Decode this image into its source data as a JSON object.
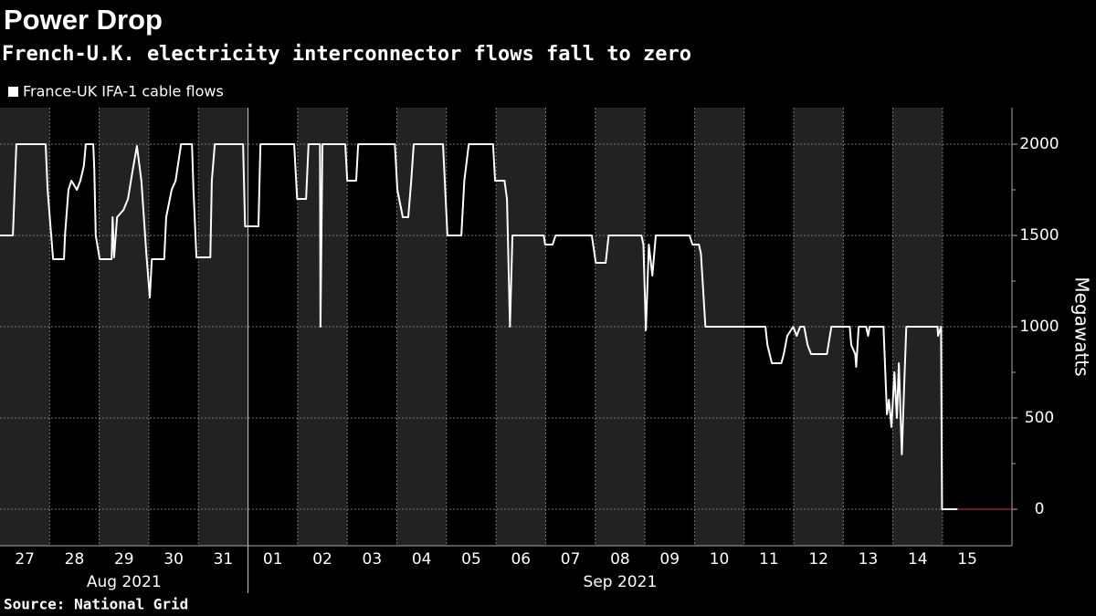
{
  "chart_data": {
    "type": "line",
    "title": "Power Drop",
    "subtitle": "French-U.K. electricity interconnector flows fall to zero",
    "source": "Source: National Grid",
    "y_axis_label": "Megawatts",
    "series": [
      {
        "name": "France-UK IFA-1 cable flows",
        "color": "#ffffff",
        "x": [
          0,
          0.26,
          0.33,
          0.92,
          0.96,
          1.07,
          1.29,
          1.31,
          1.38,
          1.44,
          1.55,
          1.62,
          1.69,
          1.73,
          1.88,
          1.9,
          1.93,
          2.01,
          2.25,
          2.27,
          2.3,
          2.36,
          2.49,
          2.58,
          2.67,
          2.76,
          2.85,
          2.95,
          3.02,
          3.06,
          3.31,
          3.35,
          3.46,
          3.54,
          3.65,
          3.87,
          3.9,
          3.96,
          4.24,
          4.27,
          4.33,
          4.9,
          4.94,
          5.21,
          5.25,
          5.93,
          5.99,
          6.17,
          6.22,
          6.45,
          6.46,
          6.5,
          6.96,
          7.0,
          7.18,
          7.22,
          7.96,
          8.01,
          8.12,
          8.23,
          8.29,
          8.34,
          8.93,
          9.02,
          9.3,
          9.36,
          9.45,
          9.94,
          9.98,
          10.17,
          10.22,
          10.28,
          10.33,
          10.96,
          10.99,
          11.14,
          11.2,
          11.93,
          12.01,
          12.21,
          12.27,
          12.93,
          12.97,
          13.02,
          13.08,
          13.15,
          13.22,
          13.9,
          13.96,
          14.09,
          14.13,
          14.22,
          15.43,
          15.47,
          15.56,
          15.75,
          15.8,
          15.87,
          15.99,
          16.06,
          16.13,
          16.21,
          16.28,
          16.35,
          16.67,
          16.76,
          17.13,
          17.16,
          17.24,
          17.26,
          17.31,
          17.46,
          17.5,
          17.53,
          17.81,
          17.88,
          17.92,
          17.97,
          18.03,
          18.08,
          18.12,
          18.18,
          18.23,
          18.27,
          18.9,
          18.91,
          18.97,
          18.99,
          19.3
        ],
        "values": [
          1500,
          1500,
          2000,
          2000,
          1750,
          1370,
          1370,
          1500,
          1750,
          1800,
          1750,
          1800,
          1880,
          2000,
          2000,
          1870,
          1500,
          1370,
          1370,
          1600,
          1380,
          1600,
          1640,
          1700,
          1850,
          1990,
          1800,
          1400,
          1160,
          1370,
          1370,
          1600,
          1750,
          1800,
          2000,
          2000,
          1750,
          1380,
          1380,
          1800,
          2000,
          2000,
          1550,
          1550,
          2000,
          2000,
          1700,
          1700,
          2000,
          2000,
          1000,
          2000,
          2000,
          1800,
          1800,
          2000,
          2000,
          1750,
          1600,
          1600,
          1800,
          2000,
          2000,
          1500,
          1500,
          1800,
          2000,
          2000,
          1800,
          1800,
          1700,
          1000,
          1500,
          1500,
          1450,
          1450,
          1500,
          1500,
          1350,
          1350,
          1500,
          1500,
          1450,
          980,
          1450,
          1280,
          1500,
          1500,
          1450,
          1450,
          1400,
          1000,
          1000,
          900,
          800,
          800,
          850,
          950,
          1000,
          950,
          1000,
          1000,
          900,
          850,
          850,
          1000,
          1000,
          900,
          850,
          780,
          1000,
          1000,
          950,
          1000,
          1000,
          520,
          600,
          450,
          750,
          500,
          800,
          300,
          700,
          1000,
          1000,
          950,
          1000,
          0,
          0
        ]
      }
    ],
    "xlim": [
      0,
      20.4
    ],
    "xticks": [
      {
        "value": 0,
        "label": "27"
      },
      {
        "value": 1,
        "label": "28"
      },
      {
        "value": 2,
        "label": "29"
      },
      {
        "value": 3,
        "label": "30"
      },
      {
        "value": 4,
        "label": "31"
      },
      {
        "value": 5,
        "label": "01"
      },
      {
        "value": 6,
        "label": "02"
      },
      {
        "value": 7,
        "label": "03"
      },
      {
        "value": 8,
        "label": "04"
      },
      {
        "value": 9,
        "label": "05"
      },
      {
        "value": 10,
        "label": "06"
      },
      {
        "value": 11,
        "label": "07"
      },
      {
        "value": 12,
        "label": "08"
      },
      {
        "value": 13,
        "label": "09"
      },
      {
        "value": 14,
        "label": "10"
      },
      {
        "value": 15,
        "label": "11"
      },
      {
        "value": 16,
        "label": "12"
      },
      {
        "value": 17,
        "label": "13"
      },
      {
        "value": 18,
        "label": "14"
      },
      {
        "value": 19,
        "label": "15"
      }
    ],
    "x_groups": [
      {
        "label": "Aug 2021",
        "from": 0,
        "to": 4
      },
      {
        "label": "Sep 2021",
        "from": 5,
        "to": 19
      }
    ],
    "ylim": [
      -200,
      2200
    ],
    "yticks": [
      0,
      500,
      1000,
      1500,
      2000
    ],
    "grid": true,
    "day_shading": true,
    "legend": "top-left"
  }
}
